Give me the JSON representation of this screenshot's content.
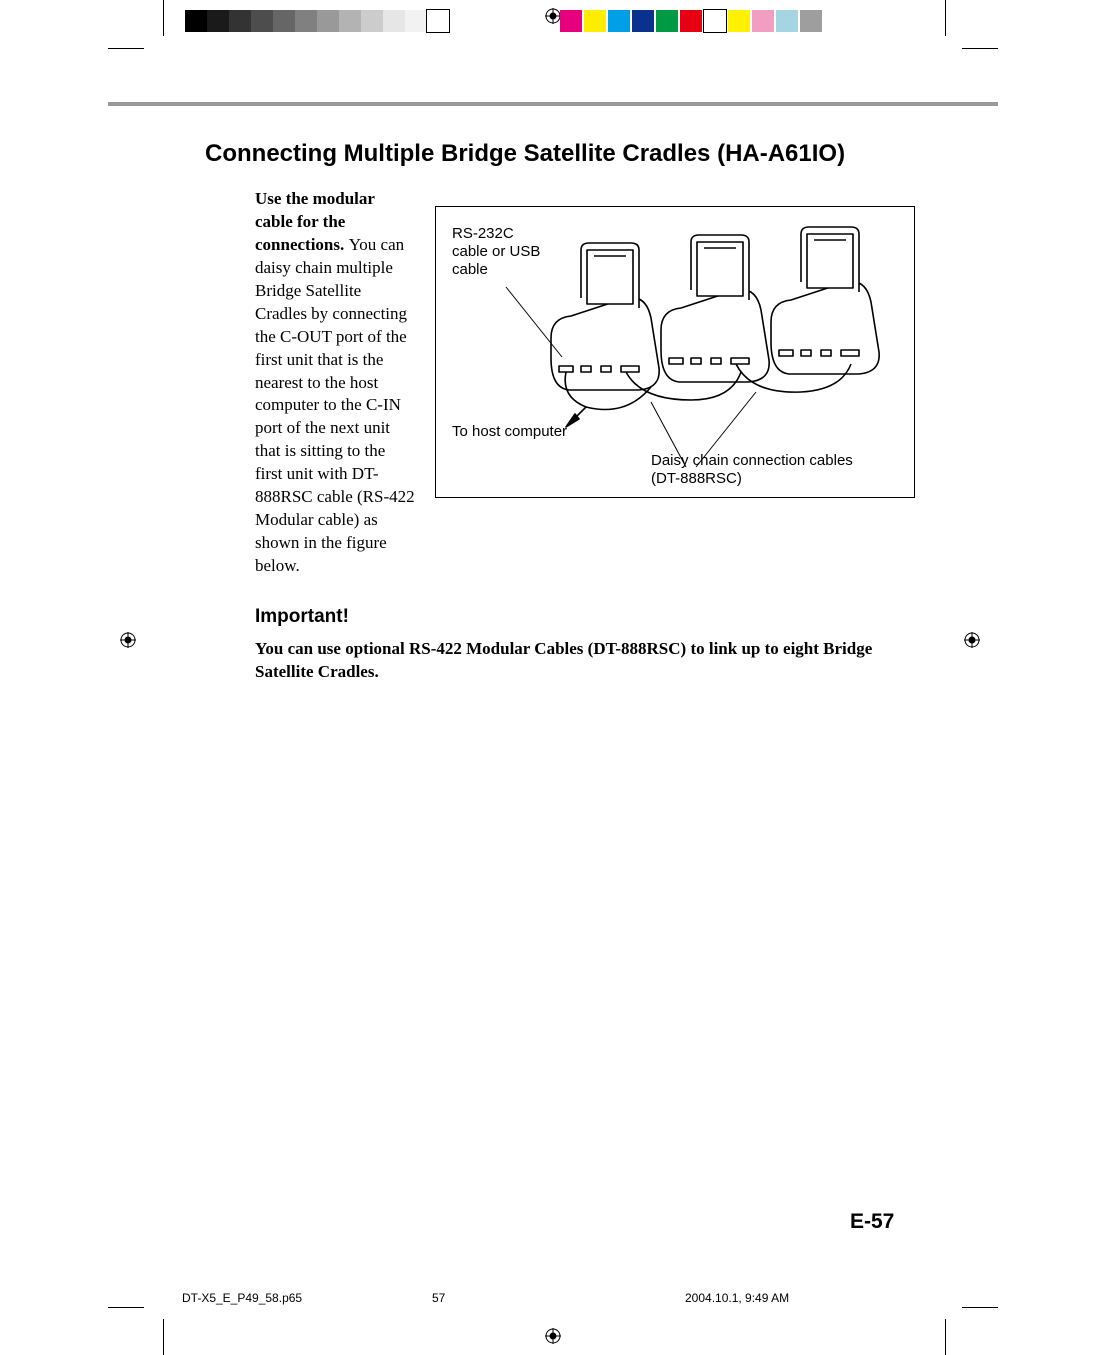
{
  "page": {
    "title": "Connecting Multiple Bridge Satellite Cradles (HA-A61IO)",
    "lead_bold": "Use the modular cable for the connections.",
    "body": "You can daisy chain multiple Bridge Satellite Cradles by connecting the C-OUT port of the first unit that is the nearest to the host computer to the C-IN port of the next unit that is sitting to the first unit with DT-888RSC cable (RS-422 Modular cable) as shown in the figure below.",
    "figure": {
      "label_cable": "RS-232C cable or USB cable",
      "label_host": "To host computer",
      "label_daisy": "Daisy chain connection cables (DT-888RSC)"
    },
    "important": {
      "heading": "Important!",
      "text": "You can use optional RS-422 Modular Cables (DT-888RSC) to link up to eight Bridge Satellite Cradles."
    },
    "page_number": "E-57"
  },
  "printer_marks": {
    "grayscale_swatches": [
      "#000000",
      "#1a1a1a",
      "#333333",
      "#4d4d4d",
      "#666666",
      "#808080",
      "#999999",
      "#b3b3b3",
      "#cccccc",
      "#e6e6e6",
      "#f2f2f2",
      "#ffffff"
    ],
    "color_swatches": [
      "#e6007e",
      "#ffed00",
      "#00a0e9",
      "#0b318f",
      "#009944",
      "#e60012",
      "#ffffff",
      "#fff100",
      "#f19ec2",
      "#a5d4e3",
      "#9e9e9f"
    ],
    "swatch_border": "#000000",
    "footer": {
      "filename": "DT-X5_E_P49_58.p65",
      "page": "57",
      "timestamp": "2004.10.1, 9:49 AM"
    }
  },
  "colors": {
    "hr": "#9a9a9a",
    "text": "#000000",
    "background": "#ffffff"
  }
}
